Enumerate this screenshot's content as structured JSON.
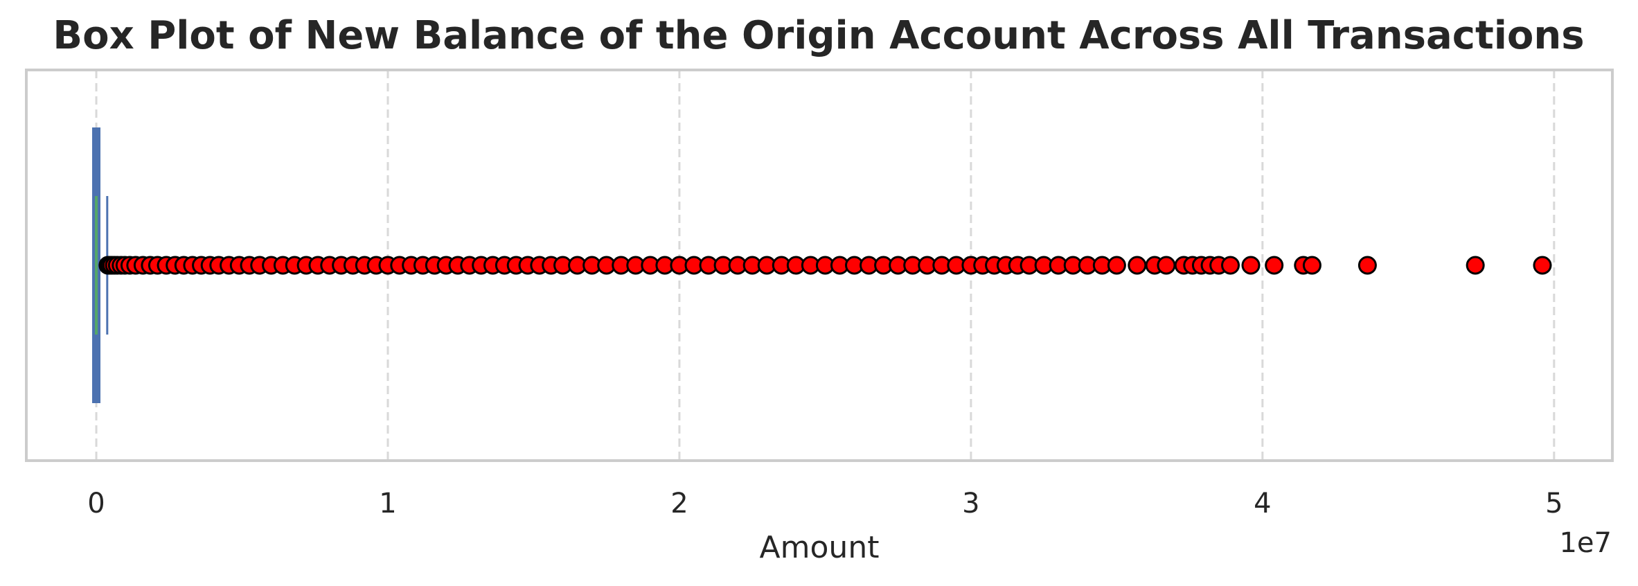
{
  "chart_data": {
    "type": "box",
    "orientation": "horizontal",
    "title": "Box Plot of New Balance of the Origin Account Across All Transactions",
    "xlabel": "Amount",
    "ylabel": "",
    "x_offset_label": "1e7",
    "x_scale_factor": 10000000,
    "xlim": [
      -2400000,
      52000000
    ],
    "x_ticks": [
      0,
      10000000,
      20000000,
      30000000,
      40000000,
      50000000
    ],
    "x_tick_labels": [
      "0",
      "1",
      "2",
      "3",
      "4",
      "5"
    ],
    "grid": "x-dashed",
    "box": {
      "min": 0,
      "q1": 0,
      "median": 0,
      "q3": 150000,
      "whisker_high": 375000
    },
    "outliers": [
      400000,
      460000,
      530000,
      620000,
      720000,
      850000,
      980000,
      1150000,
      1350000,
      1600000,
      1850000,
      2100000,
      2400000,
      2700000,
      3000000,
      3300000,
      3600000,
      3900000,
      4200000,
      4550000,
      4900000,
      5250000,
      5600000,
      6000000,
      6400000,
      6800000,
      7200000,
      7600000,
      8000000,
      8400000,
      8800000,
      9200000,
      9600000,
      10000000,
      10400000,
      10800000,
      11200000,
      11600000,
      12000000,
      12400000,
      12800000,
      13200000,
      13600000,
      14000000,
      14400000,
      14800000,
      15200000,
      15600000,
      16000000,
      16500000,
      17000000,
      17500000,
      18000000,
      18500000,
      19000000,
      19500000,
      20000000,
      20500000,
      21000000,
      21500000,
      22000000,
      22500000,
      23000000,
      23500000,
      24000000,
      24500000,
      25000000,
      25500000,
      26000000,
      26500000,
      27000000,
      27500000,
      28000000,
      28500000,
      29000000,
      29500000,
      30000000,
      30400000,
      30800000,
      31200000,
      31600000,
      32000000,
      32500000,
      33000000,
      33500000,
      34000000,
      34500000,
      35000000,
      35700000,
      36300000,
      36700000,
      37300000,
      37600000,
      37900000,
      38200000,
      38500000,
      38900000,
      39600000,
      40400000,
      41400000,
      41700000,
      43600000,
      47300000,
      49600000
    ],
    "colors": {
      "box_fill": "#4c72b0",
      "whisker": "#4c72b0",
      "median": "#55a868",
      "outlier_fill": "#ff0000",
      "outlier_edge": "#000000",
      "grid": "#d9d9d9",
      "frame": "#cccccc"
    }
  }
}
